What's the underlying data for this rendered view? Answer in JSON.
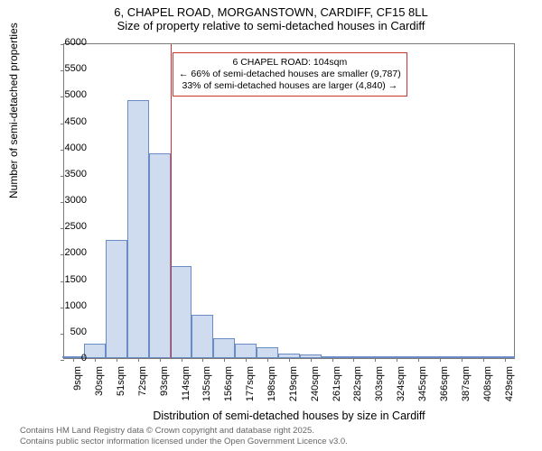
{
  "title": {
    "line1": "6, CHAPEL ROAD, MORGANSTOWN, CARDIFF, CF15 8LL",
    "line2": "Size of property relative to semi-detached houses in Cardiff"
  },
  "chart": {
    "type": "histogram",
    "ylabel": "Number of semi-detached properties",
    "xlabel": "Distribution of semi-detached houses by size in Cardiff",
    "xlim": [
      0,
      440
    ],
    "ylim": [
      0,
      6000
    ],
    "ytick_step": 500,
    "yticks": [
      0,
      500,
      1000,
      1500,
      2000,
      2500,
      3000,
      3500,
      4000,
      4500,
      5000,
      5500,
      6000
    ],
    "xticks": [
      9,
      30,
      51,
      72,
      93,
      114,
      135,
      156,
      177,
      198,
      219,
      240,
      261,
      282,
      303,
      324,
      345,
      366,
      387,
      408,
      429
    ],
    "xtick_suffix": "sqm",
    "bar_color": "#cfdcf0",
    "bar_border": "#6b8bc4",
    "background_color": "#ffffff",
    "border_color": "#7b7b7b",
    "bin_width": 21,
    "bins": [
      {
        "x": 9,
        "count": 10
      },
      {
        "x": 30,
        "count": 270
      },
      {
        "x": 51,
        "count": 2250
      },
      {
        "x": 72,
        "count": 4900
      },
      {
        "x": 93,
        "count": 3900
      },
      {
        "x": 114,
        "count": 1750
      },
      {
        "x": 135,
        "count": 820
      },
      {
        "x": 156,
        "count": 370
      },
      {
        "x": 177,
        "count": 270
      },
      {
        "x": 198,
        "count": 200
      },
      {
        "x": 219,
        "count": 90
      },
      {
        "x": 240,
        "count": 70
      },
      {
        "x": 261,
        "count": 30
      },
      {
        "x": 282,
        "count": 25
      },
      {
        "x": 303,
        "count": 15
      },
      {
        "x": 324,
        "count": 10
      },
      {
        "x": 345,
        "count": 8
      },
      {
        "x": 366,
        "count": 5
      },
      {
        "x": 387,
        "count": 3
      },
      {
        "x": 408,
        "count": 2
      },
      {
        "x": 429,
        "count": 2
      }
    ],
    "refline": {
      "x": 104,
      "color": "#cc3333"
    },
    "annotation": {
      "line1": "6 CHAPEL ROAD: 104sqm",
      "line2": "← 66% of semi-detached houses are smaller (9,787)",
      "line3": "33% of semi-detached houses are larger (4,840) →",
      "border_color": "#cc3333",
      "x_center": 220,
      "y_top": 5850
    }
  },
  "footer": {
    "line1": "Contains HM Land Registry data © Crown copyright and database right 2025.",
    "line2": "Contains public sector information licensed under the Open Government Licence v3.0."
  }
}
